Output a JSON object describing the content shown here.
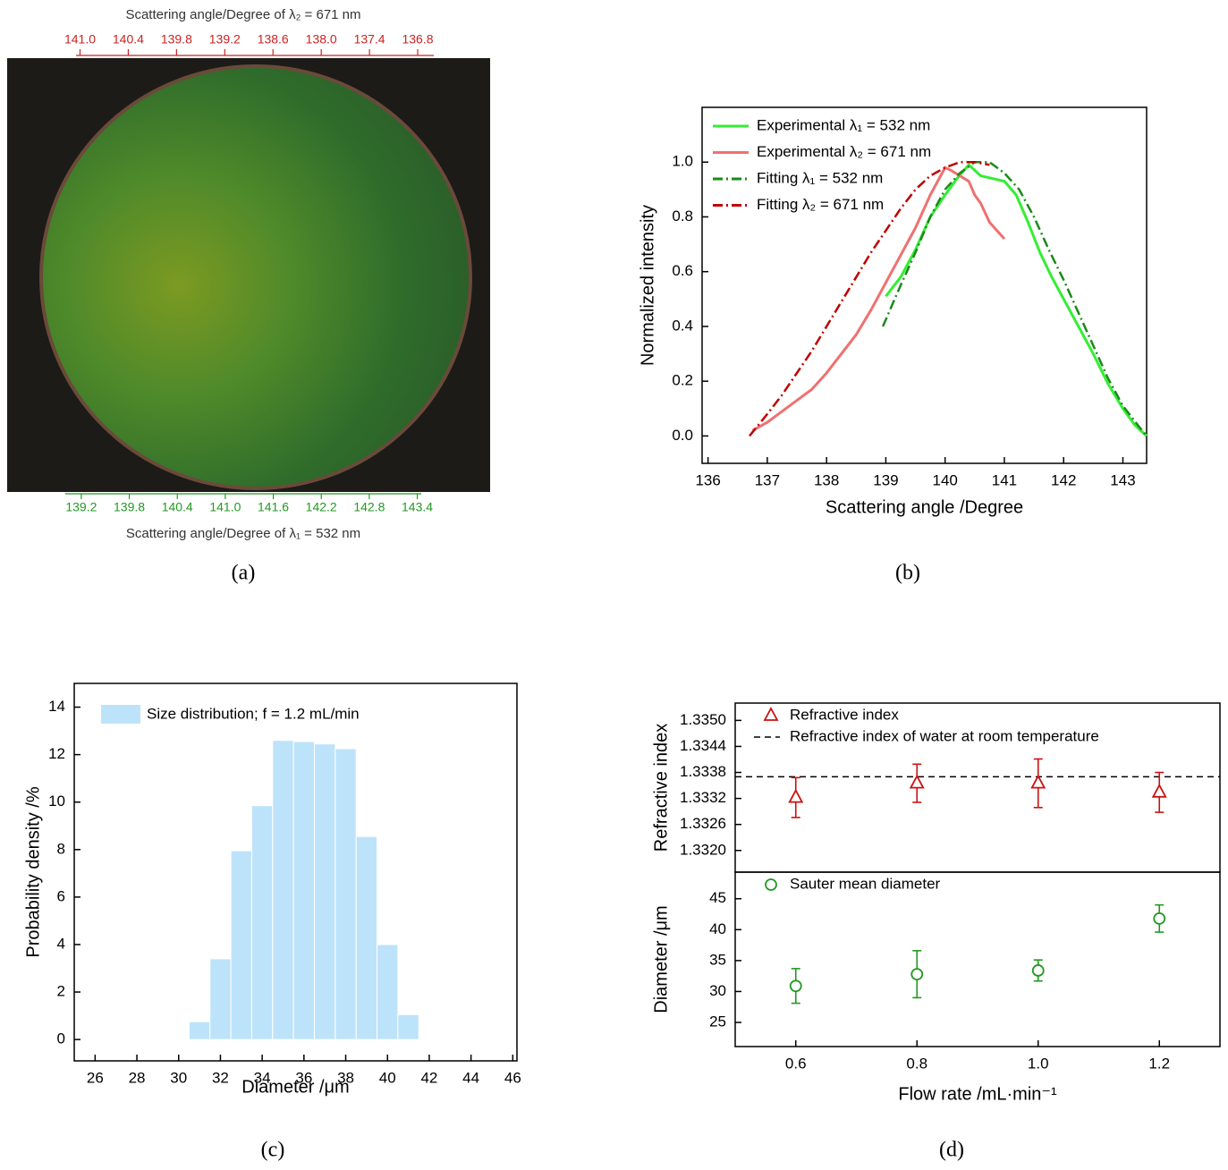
{
  "chart_data": [
    {
      "type": "image",
      "title": "Scattering angle/Degree of λ₂ = 671 nm",
      "x2color": "#cc2222",
      "x2lim": [
        141.05,
        136.6
      ],
      "x2ticks": [
        {
          "value": 141,
          "label": "141.0"
        },
        140.4,
        139.8,
        139.2,
        138.6,
        {
          "value": 138,
          "label": "138.0"
        },
        137.4,
        136.8
      ],
      "xlabel": "Scattering angle/Degree of λ₁ = 532 nm",
      "xcolor": "#229922",
      "xlim": [
        139.0,
        143.45
      ],
      "xticks": [
        139.2,
        139.8,
        140.4,
        {
          "value": 141,
          "label": "141.0"
        },
        141.6,
        142.2,
        142.8,
        143.4
      ],
      "caption": "(a)"
    },
    {
      "type": "line",
      "xlabel": "Scattering angle /Degree",
      "ylabel": "Normalized intensity",
      "caption": "(b)",
      "xlim": [
        135.9,
        143.4
      ],
      "xticks": [
        136,
        137,
        138,
        139,
        140,
        141,
        142,
        143
      ],
      "ylim": [
        -0.1,
        1.2
      ],
      "yticks": [
        {
          "value": 0,
          "label": "0.0"
        },
        0.2,
        0.4,
        0.6,
        0.8,
        {
          "value": 1,
          "label": "1.0"
        }
      ],
      "series": [
        {
          "name": "Experimental λ₁ = 532 nm",
          "color": "#33ee33",
          "style": "solid",
          "x": [
            139.0,
            139.25,
            139.5,
            139.75,
            140.0,
            140.2,
            140.4,
            140.6,
            140.8,
            141.0,
            141.2,
            141.4,
            141.6,
            141.8,
            142.0,
            142.25,
            142.5,
            142.75,
            143.0,
            143.2,
            143.4
          ],
          "values": [
            0.51,
            0.58,
            0.68,
            0.8,
            0.88,
            0.94,
            0.99,
            0.95,
            0.94,
            0.93,
            0.88,
            0.78,
            0.67,
            0.58,
            0.5,
            0.4,
            0.3,
            0.19,
            0.1,
            0.04,
            0.0
          ]
        },
        {
          "name": "Experimental λ₂ = 671 nm",
          "color": "#f07070",
          "style": "solid",
          "x": [
            136.75,
            137.0,
            137.25,
            137.5,
            137.75,
            138.0,
            138.25,
            138.5,
            138.75,
            139.0,
            139.25,
            139.5,
            139.75,
            140.0,
            140.1,
            140.25,
            140.4,
            140.5,
            140.6,
            140.75,
            141.0
          ],
          "values": [
            0.02,
            0.05,
            0.09,
            0.13,
            0.17,
            0.23,
            0.3,
            0.37,
            0.46,
            0.56,
            0.66,
            0.76,
            0.88,
            0.98,
            0.97,
            0.95,
            0.93,
            0.88,
            0.85,
            0.78,
            0.72
          ]
        },
        {
          "name": "Fitting λ₁ = 532 nm",
          "color": "#1a8a1a",
          "style": "dashdot",
          "x": [
            138.95,
            139.25,
            139.5,
            139.75,
            140.0,
            140.25,
            140.5,
            140.75,
            141.0,
            141.25,
            141.5,
            141.75,
            142.0,
            142.25,
            142.5,
            142.75,
            143.0,
            143.25,
            143.4
          ],
          "values": [
            0.4,
            0.55,
            0.67,
            0.8,
            0.9,
            0.96,
            1.0,
            1.0,
            0.96,
            0.9,
            0.8,
            0.68,
            0.57,
            0.45,
            0.33,
            0.21,
            0.11,
            0.04,
            0.0
          ]
        },
        {
          "name": "Fitting λ₂ = 671 nm",
          "color": "#c00000",
          "style": "dashdot",
          "x": [
            136.7,
            137.0,
            137.25,
            137.5,
            137.75,
            138.0,
            138.25,
            138.5,
            138.75,
            139.0,
            139.25,
            139.5,
            139.75,
            140.0,
            140.25,
            140.5,
            140.75
          ],
          "values": [
            0.0,
            0.08,
            0.15,
            0.23,
            0.31,
            0.4,
            0.49,
            0.58,
            0.67,
            0.75,
            0.83,
            0.9,
            0.95,
            0.98,
            1.0,
            1.0,
            0.99
          ]
        }
      ]
    },
    {
      "type": "histogram",
      "xlabel": "Diameter /μm",
      "ylabel": "Probability density /%",
      "caption": "(c)",
      "xlim": [
        25,
        46.2
      ],
      "xticks": [
        26,
        28,
        30,
        32,
        34,
        36,
        38,
        40,
        42,
        44,
        46
      ],
      "ylim": [
        -0.9,
        15
      ],
      "yticks": [
        0,
        2,
        4,
        6,
        8,
        10,
        12,
        14
      ],
      "series": [
        {
          "name": "Size distribution; f = 1.2 mL/min",
          "color": "#bde3fa",
          "bins": [
            30.5,
            31.5,
            32.5,
            33.5,
            34.5,
            35.5,
            36.5,
            37.5,
            38.5,
            39.5,
            40.5,
            41.5
          ],
          "values": [
            0.75,
            3.4,
            7.95,
            9.85,
            12.6,
            12.55,
            12.45,
            12.25,
            8.55,
            4.0,
            1.05
          ]
        }
      ]
    },
    {
      "type": "scatter",
      "ylabel": "Refractive index",
      "xlim": [
        0.5,
        1.3
      ],
      "ylim": [
        1.3315,
        1.3354
      ],
      "yticks": [
        {
          "value": 1.332,
          "label": "1.3320"
        },
        1.3326,
        1.3332,
        1.3338,
        1.3344,
        {
          "value": 1.335,
          "label": "1.3350"
        }
      ],
      "series": [
        {
          "name": "Refractive index",
          "color": "#cc1111",
          "marker": "triangle",
          "x": [
            0.6,
            0.8,
            1.0,
            1.2
          ],
          "values": [
            1.33322,
            1.33355,
            1.33355,
            1.33334
          ],
          "errors": [
            0.00046,
            0.00044,
            0.00056,
            0.00046
          ]
        }
      ],
      "hline": {
        "name": "Refractive index of water at room temperature",
        "value": 1.3337,
        "color": "#000000"
      }
    },
    {
      "type": "scatter",
      "ylabel": "Diameter /μm",
      "xlabel": "Flow rate /mL·min⁻¹",
      "caption": "(d)",
      "xlim": [
        0.5,
        1.3
      ],
      "xticks": [
        0.6,
        0.8,
        {
          "value": 1,
          "label": "1.0"
        },
        1.2
      ],
      "ylim": [
        21.1,
        49.3
      ],
      "yticks": [
        25,
        30,
        35,
        40,
        45
      ],
      "series": [
        {
          "name": "Sauter mean diameter",
          "color": "#229922",
          "marker": "circle",
          "x": [
            0.6,
            0.8,
            1.0,
            1.2
          ],
          "values": [
            30.9,
            32.8,
            33.4,
            41.8
          ],
          "errors": [
            2.8,
            3.8,
            1.7,
            2.2
          ]
        }
      ]
    }
  ]
}
